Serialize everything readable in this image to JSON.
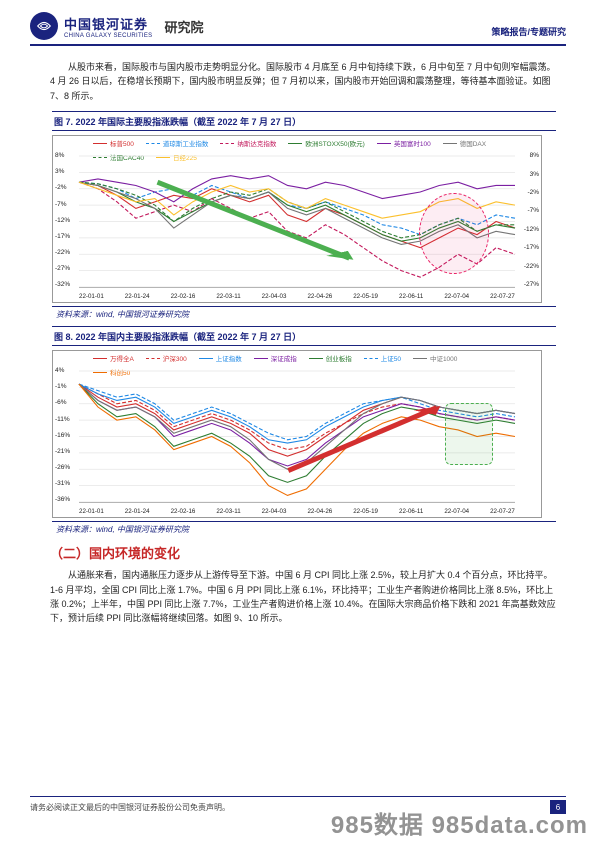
{
  "header": {
    "brand_cn": "中国银河证券",
    "brand_en": "CHINA GALAXY SECURITIES",
    "dept": "研究院",
    "right_label": "策略报告/专题研究",
    "brand_color": "#1a237e"
  },
  "para1": "从股市来看，国际股市与国内股市走势明显分化。国际股市 4 月底至 6 月中旬持续下跌，6 月中旬至 7 月中旬则窄幅震荡。4 月 26 日以后，在稳增长预期下，国内股市明显反弹；但 7 月初以来，国内股市开始回调和震荡整理，等待基本面验证。如图 7、8 所示。",
  "chart7": {
    "title": "图 7. 2022 年国际主要股指涨跌幅（截至 2022 年 7 月 27 日）",
    "type": "line",
    "background_color": "#ffffff",
    "grid_color": "#e5e5e5",
    "ylim": [
      -32,
      8
    ],
    "y_ticks": [
      "8%",
      "3%",
      "-2%",
      "-7%",
      "-12%",
      "-17%",
      "-22%",
      "-27%",
      "-32%"
    ],
    "y_ticks_right": [
      "8%",
      "3%",
      "-2%",
      "-7%",
      "-12%",
      "-17%",
      "-22%",
      "-27%"
    ],
    "x_ticks": [
      "22-01-01",
      "22-01-24",
      "22-02-16",
      "22-03-11",
      "22-04-03",
      "22-04-26",
      "22-05-19",
      "22-06-11",
      "22-07-04",
      "22-07-27"
    ],
    "legend": [
      {
        "label": "标普500",
        "color": "#d32f2f",
        "dash": "solid"
      },
      {
        "label": "道琼斯工业指数",
        "color": "#1e88e5",
        "dash": "dashed"
      },
      {
        "label": "纳斯达克指数",
        "color": "#c2185b",
        "dash": "dashed"
      },
      {
        "label": "欧洲STOXX50(欧元)",
        "color": "#2e7d32",
        "dash": "solid"
      },
      {
        "label": "英国富时100",
        "color": "#7b1fa2",
        "dash": "solid"
      },
      {
        "label": "德国DAX",
        "color": "#757575",
        "dash": "solid"
      },
      {
        "label": "法国CAC40",
        "color": "#2e7d32",
        "dash": "dashed"
      },
      {
        "label": "日经225",
        "color": "#fbc02d",
        "dash": "solid"
      }
    ],
    "series": {
      "sp500": {
        "color": "#d32f2f",
        "dash": "0",
        "values": [
          0,
          -1,
          -4,
          -8,
          -6,
          -4,
          -5,
          -2,
          -4,
          -6,
          -4,
          -10,
          -12,
          -8,
          -10,
          -13,
          -16,
          -18,
          -20,
          -17,
          -14,
          -16,
          -12,
          -14
        ]
      },
      "dow": {
        "color": "#1e88e5",
        "dash": "4 2",
        "values": [
          0,
          -0.5,
          -2,
          -5,
          -3,
          -2,
          -4,
          -1,
          -3,
          -5,
          -3,
          -7,
          -8,
          -6,
          -8,
          -10,
          -13,
          -14,
          -16,
          -13,
          -11,
          -13,
          -10,
          -11
        ]
      },
      "nasdaq": {
        "color": "#c2185b",
        "dash": "4 2",
        "values": [
          0,
          -2,
          -6,
          -11,
          -9,
          -7,
          -9,
          -5,
          -8,
          -11,
          -9,
          -15,
          -17,
          -13,
          -16,
          -20,
          -24,
          -27,
          -29,
          -26,
          -22,
          -25,
          -20,
          -22
        ]
      },
      "stoxx": {
        "color": "#2e7d32",
        "dash": "0",
        "values": [
          0,
          -1,
          -3,
          -6,
          -8,
          -12,
          -9,
          -6,
          -4,
          -5,
          -3,
          -7,
          -9,
          -7,
          -10,
          -13,
          -16,
          -18,
          -17,
          -14,
          -12,
          -15,
          -13,
          -14
        ]
      },
      "ftse": {
        "color": "#7b1fa2",
        "dash": "0",
        "values": [
          0,
          1,
          0,
          -1,
          -3,
          -6,
          -2,
          1,
          2,
          1,
          2,
          -1,
          -2,
          0,
          -1,
          -3,
          -5,
          -4,
          -3,
          -1,
          0,
          -2,
          -1,
          -1
        ]
      },
      "dax": {
        "color": "#757575",
        "dash": "0",
        "values": [
          0,
          -1,
          -3,
          -5,
          -8,
          -14,
          -10,
          -6,
          -4,
          -5,
          -3,
          -8,
          -10,
          -8,
          -11,
          -14,
          -17,
          -19,
          -18,
          -15,
          -13,
          -17,
          -15,
          -16
        ]
      },
      "cac": {
        "color": "#2e7d32",
        "dash": "4 2",
        "values": [
          0,
          -0.5,
          -2,
          -4,
          -7,
          -12,
          -8,
          -5,
          -3,
          -4,
          -2,
          -6,
          -8,
          -6,
          -9,
          -12,
          -15,
          -17,
          -16,
          -13,
          -11,
          -15,
          -13,
          -13
        ]
      },
      "nikkei": {
        "color": "#fbc02d",
        "dash": "0",
        "values": [
          0,
          -2,
          -4,
          -6,
          -5,
          -10,
          -6,
          -3,
          -1,
          -3,
          -2,
          -6,
          -8,
          -5,
          -7,
          -9,
          -11,
          -10,
          -9,
          -6,
          -5,
          -8,
          -6,
          -7
        ]
      }
    },
    "arrow": {
      "color": "#4caf50",
      "x1_pct": 18,
      "y1_pct": 20,
      "x2_pct": 62,
      "y2_pct": 78
    },
    "highlight_oval": {
      "right_pct": 6,
      "top_pct": 28,
      "w_pct": 16,
      "h_pct": 62,
      "color": "#e91e63"
    },
    "source": "资料来源：wind, 中国银河证券研究院"
  },
  "chart8": {
    "title": "图 8. 2022 年国内主要股指涨跌幅（截至 2022 年 7 月 27 日）",
    "type": "line",
    "background_color": "#ffffff",
    "grid_color": "#e5e5e5",
    "ylim": [
      -36,
      4
    ],
    "y_ticks": [
      "4%",
      "-1%",
      "-6%",
      "-11%",
      "-16%",
      "-21%",
      "-26%",
      "-31%",
      "-36%"
    ],
    "x_ticks": [
      "22-01-01",
      "22-01-24",
      "22-02-16",
      "22-03-11",
      "22-04-03",
      "22-04-26",
      "22-05-19",
      "22-06-11",
      "22-07-04",
      "22-07-27"
    ],
    "legend": [
      {
        "label": "万得全A",
        "color": "#d32f2f",
        "dash": "solid"
      },
      {
        "label": "沪深300",
        "color": "#d32f2f",
        "dash": "dashed"
      },
      {
        "label": "上证指数",
        "color": "#1e88e5",
        "dash": "solid"
      },
      {
        "label": "深证成指",
        "color": "#7b1fa2",
        "dash": "solid"
      },
      {
        "label": "创业板指",
        "color": "#2e7d32",
        "dash": "solid"
      },
      {
        "label": "上证50",
        "color": "#1e88e5",
        "dash": "dashed"
      },
      {
        "label": "中证1000",
        "color": "#757575",
        "dash": "solid"
      },
      {
        "label": "科创50",
        "color": "#ef6c00",
        "dash": "solid"
      }
    ],
    "series": {
      "wande": {
        "color": "#d32f2f",
        "dash": "0",
        "values": [
          0,
          -4,
          -7,
          -6,
          -9,
          -14,
          -12,
          -10,
          -12,
          -15,
          -20,
          -22,
          -20,
          -16,
          -12,
          -8,
          -6,
          -4,
          -5,
          -7,
          -8,
          -9,
          -8,
          -9
        ]
      },
      "hs300": {
        "color": "#d32f2f",
        "dash": "4 2",
        "values": [
          0,
          -3,
          -6,
          -5,
          -8,
          -13,
          -11,
          -9,
          -11,
          -14,
          -18,
          -20,
          -19,
          -15,
          -12,
          -9,
          -7,
          -6,
          -7,
          -9,
          -10,
          -11,
          -10,
          -11
        ]
      },
      "sh": {
        "color": "#1e88e5",
        "dash": "0",
        "values": [
          0,
          -3,
          -5,
          -4,
          -7,
          -12,
          -10,
          -8,
          -10,
          -13,
          -17,
          -18,
          -17,
          -13,
          -10,
          -7,
          -5,
          -4,
          -5,
          -7,
          -8,
          -9,
          -8,
          -9
        ]
      },
      "sz": {
        "color": "#7b1fa2",
        "dash": "0",
        "values": [
          0,
          -5,
          -8,
          -7,
          -10,
          -16,
          -14,
          -12,
          -14,
          -18,
          -23,
          -25,
          -23,
          -18,
          -14,
          -10,
          -8,
          -6,
          -7,
          -9,
          -10,
          -11,
          -10,
          -11
        ]
      },
      "cyb": {
        "color": "#2e7d32",
        "dash": "0",
        "values": [
          0,
          -6,
          -10,
          -9,
          -13,
          -19,
          -17,
          -15,
          -18,
          -22,
          -28,
          -30,
          -28,
          -22,
          -17,
          -12,
          -9,
          -7,
          -8,
          -10,
          -11,
          -12,
          -11,
          -12
        ]
      },
      "sz50": {
        "color": "#1e88e5",
        "dash": "4 2",
        "values": [
          0,
          -2,
          -4,
          -3,
          -6,
          -11,
          -9,
          -7,
          -9,
          -12,
          -15,
          -17,
          -16,
          -12,
          -9,
          -6,
          -5,
          -4,
          -6,
          -8,
          -9,
          -10,
          -9,
          -10
        ]
      },
      "zz1000": {
        "color": "#757575",
        "dash": "0",
        "values": [
          0,
          -5,
          -8,
          -7,
          -10,
          -15,
          -13,
          -11,
          -13,
          -17,
          -23,
          -26,
          -24,
          -19,
          -14,
          -9,
          -6,
          -4,
          -5,
          -7,
          -8,
          -9,
          -8,
          -9
        ]
      },
      "kc50": {
        "color": "#ef6c00",
        "dash": "0",
        "values": [
          0,
          -7,
          -11,
          -10,
          -14,
          -20,
          -18,
          -16,
          -19,
          -24,
          -31,
          -34,
          -32,
          -26,
          -20,
          -15,
          -12,
          -10,
          -11,
          -13,
          -14,
          -16,
          -15,
          -16
        ]
      }
    },
    "arrow": {
      "color": "#d32f2f",
      "x1_pct": 48,
      "y1_pct": 76,
      "x2_pct": 82,
      "y2_pct": 28
    },
    "highlight_rect": {
      "right_pct": 5,
      "top_pct": 24,
      "w_pct": 11,
      "h_pct": 48,
      "color": "#4caf50"
    },
    "source": "资料来源：wind, 中国银河证券研究院"
  },
  "section2_heading": "（二）国内环境的变化",
  "para2": "从通胀来看，国内通胀压力逐步从上游传导至下游。中国 6 月 CPI 同比上涨 2.5%，较上月扩大 0.4 个百分点，环比持平。1-6 月平均，全国 CPI 同比上涨 1.7%。中国 6 月 PPI 同比上涨 6.1%，环比持平；工业生产者购进价格同比上涨 8.5%，环比上涨 0.2%；上半年，中国 PPI 同比上涨 7.7%，工业生产者购进价格上涨 10.4%。在国际大宗商品价格下跌和 2021 年高基数效应下，预计后续 PPI 同比涨幅将继续回落。如图 9、10 所示。",
  "footer": {
    "disclaimer": "请务必阅读正文最后的中国银河证券股份公司免责声明。",
    "page": "6"
  },
  "watermark": "985数据 985data.com"
}
